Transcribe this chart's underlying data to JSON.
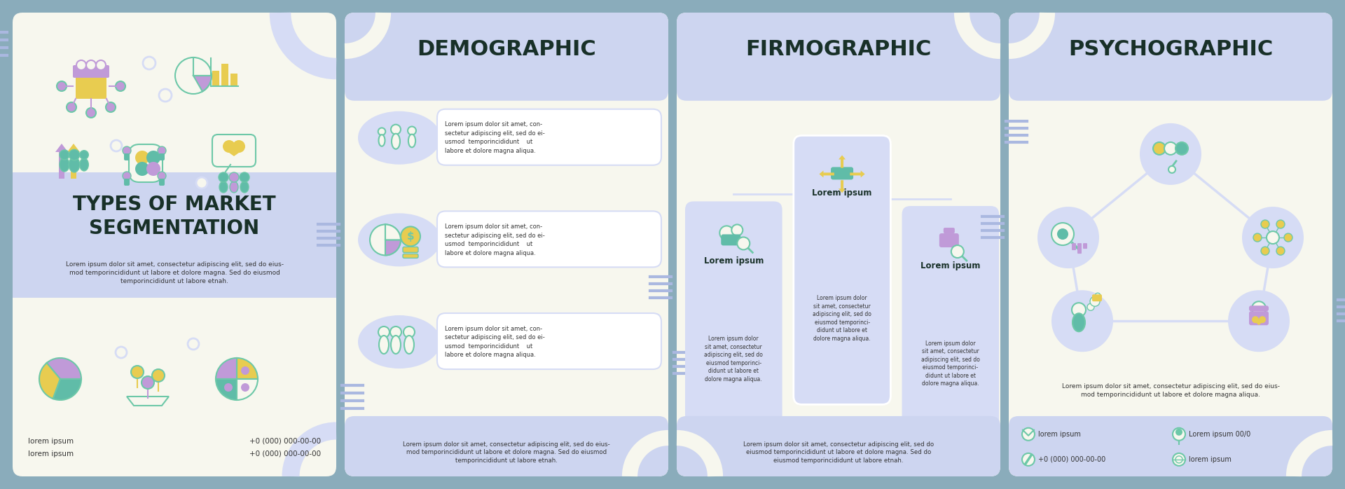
{
  "bg_color": "#8aacbb",
  "panel_bg": "#f7f7ee",
  "blue_header_bg": "#cdd5f0",
  "blue_footer_bg": "#cdd5f0",
  "title_color": "#183028",
  "body_text_color": "#333333",
  "accent_blue": "#d6dcf5",
  "icon_green": "#6dc8a8",
  "icon_yellow": "#e8cc50",
  "icon_purple": "#c09ad8",
  "icon_teal": "#60bca8",
  "stripe_color": "#aab8e0",
  "white": "#ffffff",
  "panel1": {
    "title": "TYPES OF MARKET\nSEGMENTATION",
    "body": "Lorem ipsum dolor sit amet, consectetur adipiscing elit, sed do eius-\nmod temporincididunt ut labore et dolore magna. Sed do eiusmod\ntemporincididunt ut labore etnah.",
    "footer_left1": "lorem ipsum",
    "footer_left2": "lorem ipsum",
    "footer_right1": "+0 (000) 000-00-00",
    "footer_right2": "+0 (000) 000-00-00"
  },
  "panel2": {
    "title": "DEMOGRAPHIC",
    "item1": "Lorem ipsum dolor sit amet, con-\nsectetur adipiscing elit, sed do ei-\nusmod  temporincididunt    ut\nlabore et dolore magna aliqua.",
    "item2": "Lorem ipsum dolor sit amet, con-\nsectetur adipiscing elit, sed do ei-\nusmod  temporincididunt    ut\nlabore et dolore magna aliqua.",
    "item3": "Lorem ipsum dolor sit amet, con-\nsectetur adipiscing elit, sed do ei-\nusmod  temporincididunt    ut\nlabore et dolore magna aliqua.",
    "footer": "Lorem ipsum dolor sit amet, consectetur adipiscing elit, sed do eius-\nmod temporincididunt ut labore et dolore magna. Sed do eiusmod\ntemporincididunt ut labore etnah."
  },
  "panel3": {
    "title": "FIRMOGRAPHIC",
    "card1_title": "Lorem ipsum",
    "card1_body": "Lorem ipsum dolor\nsit amet, consectetur\nadipiscing elit, sed do\neiusmod temporinci-\ndidunt ut labore et\ndolore magna aliqua.",
    "card2_title": "Lorem ipsum",
    "card2_body": "Lorem ipsum dolor\nsit amet, consectetur\nadipiscing elit, sed do\neiusmod temporinci-\ndidunt ut labore et\ndolore magna aliqua.",
    "card3_title": "Lorem ipsum",
    "card3_body": "Lorem ipsum dolor\nsit amet, consectetur\nadipiscing elit, sed do\neiusmod temporinci-\ndidunt ut labore et\ndolore magna aliqua.",
    "footer": "Lorem ipsum dolor sit amet, consectetur adipiscing elit, sed do\neiusmod temporincididunt ut labore et dolore magna. Sed do\neiusmod temporincididunt ut labore etnah."
  },
  "panel4": {
    "title": "PSYCHOGRAPHIC",
    "body": "Lorem ipsum dolor sit amet, consectetur adipiscing elit, sed do eius-\nmod temporincididunt ut labore et dolore magna aliqua.",
    "footer_email": "lorem ipsum",
    "footer_phone": "+0 (000) 000-00-00",
    "footer_location": "Lorem ipsum 00/0",
    "footer_web": "lorem ipsum"
  }
}
